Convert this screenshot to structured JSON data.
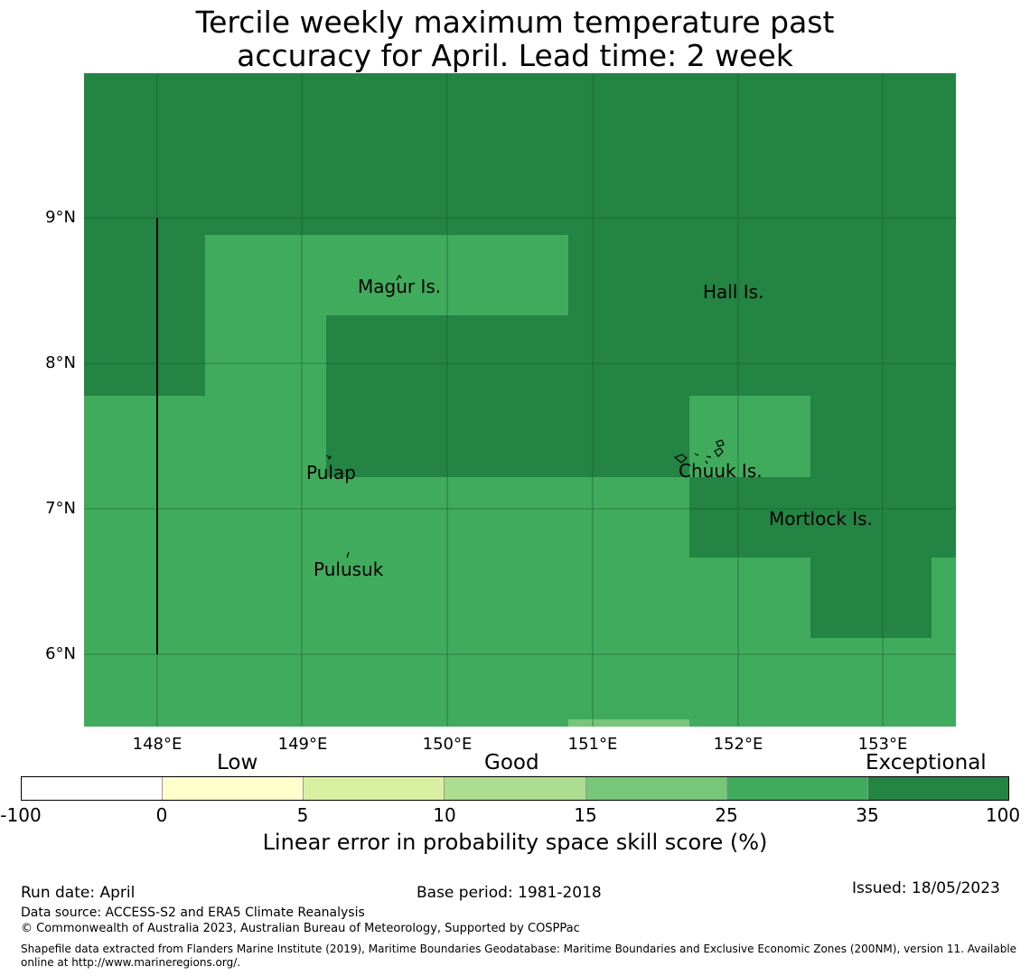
{
  "title_line1": "Tercile weekly maximum temperature past",
  "title_line2": "accuracy for April. Lead time: 2 week",
  "lat_labels": [
    "9°N",
    "8°N",
    "7°N",
    "6°N"
  ],
  "lon_labels": [
    "148°E",
    "149°E",
    "150°E",
    "151°E",
    "152°E",
    "153°E"
  ],
  "places": [
    "Magur Is.",
    "Hall Is.",
    "Pulap",
    "Chuuk Is.",
    "Mortlock Is.",
    "Pulusuk"
  ],
  "colorbar": {
    "categories": [
      "Low",
      "Good",
      "Exceptional"
    ],
    "ticks": [
      "-100",
      "0",
      "5",
      "10",
      "15",
      "25",
      "35",
      "100"
    ],
    "colors": [
      "#ffffff",
      "#ffffcc",
      "#d9f0a3",
      "#addd8e",
      "#78c679",
      "#41ab5d",
      "#238443"
    ],
    "label": "Linear error in probability space skill score (%)"
  },
  "footer": {
    "run_date": "Run date: April",
    "base_period": "Base period: 1981-2018",
    "issued": "Issued: 18/05/2023",
    "data_source": "Data source: ACCESS-S2 and ERA5 Climate Reanalysis",
    "copyright": "© Commonwealth of Australia 2023, Australian Bureau of Meteorology, Supported by COSPPac",
    "shapefile_line1": "Shapefile data extracted from Flanders Marine Institute (2019), Maritime Boundaries Geodatabase: Maritime Boundaries and Exclusive Economic Zones (200NM), version 11. Available",
    "shapefile_line2": "online at http://www.marineregions.org/."
  }
}
